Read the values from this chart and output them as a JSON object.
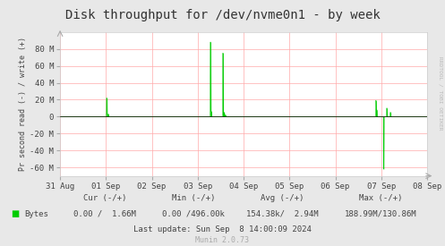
{
  "title": "Disk throughput for /dev/nvme0n1 - by week",
  "ylabel": "Pr second read (-) / write (+)",
  "xlabel_ticks": [
    "31 Aug",
    "01 Sep",
    "02 Sep",
    "03 Sep",
    "04 Sep",
    "05 Sep",
    "06 Sep",
    "07 Sep",
    "08 Sep"
  ],
  "ylim": [
    -70000000,
    100000000
  ],
  "ytick_vals": [
    -60000000,
    -40000000,
    -20000000,
    0,
    20000000,
    40000000,
    60000000,
    80000000
  ],
  "ytick_labels": [
    "-60 M",
    "-40 M",
    "-20 M",
    "0",
    "20 M",
    "40 M",
    "60 M",
    "80 M"
  ],
  "bg_color": "#e8e8e8",
  "plot_bg_color": "#ffffff",
  "grid_color": "#ffaaaa",
  "line_color": "#00cc00",
  "title_color": "#333333",
  "watermark": "RRDTOOL / TOBI OETIKER",
  "footer_text": "Munin 2.0.73",
  "legend_label": "Bytes",
  "stat_header1": "Cur (-/+)",
  "stat_header2": "Min (-/+)",
  "stat_header3": "Avg (-/+)",
  "stat_header4": "Max (-/+)",
  "stat_val1": "0.00 /  1.66M",
  "stat_val2": "0.00 /496.00k",
  "stat_val3": "154.38k/  2.94M",
  "stat_val4": "188.99M/130.86M",
  "last_update": "Last update: Sun Sep  8 14:00:09 2024",
  "spike1_day": 1.02,
  "spike1_val": 22000000,
  "spike2_day": 3.28,
  "spike2_val": 88000000,
  "spike3_day": 3.55,
  "spike3_val": 75000000,
  "spike4_day": 6.88,
  "spike4_val": 19000000,
  "spike5_day": 7.05,
  "spike5_val": -62000000,
  "spike6_day": 7.12,
  "spike6_val": 10000000,
  "spike7_day": 7.2,
  "spike7_val": 5000000
}
